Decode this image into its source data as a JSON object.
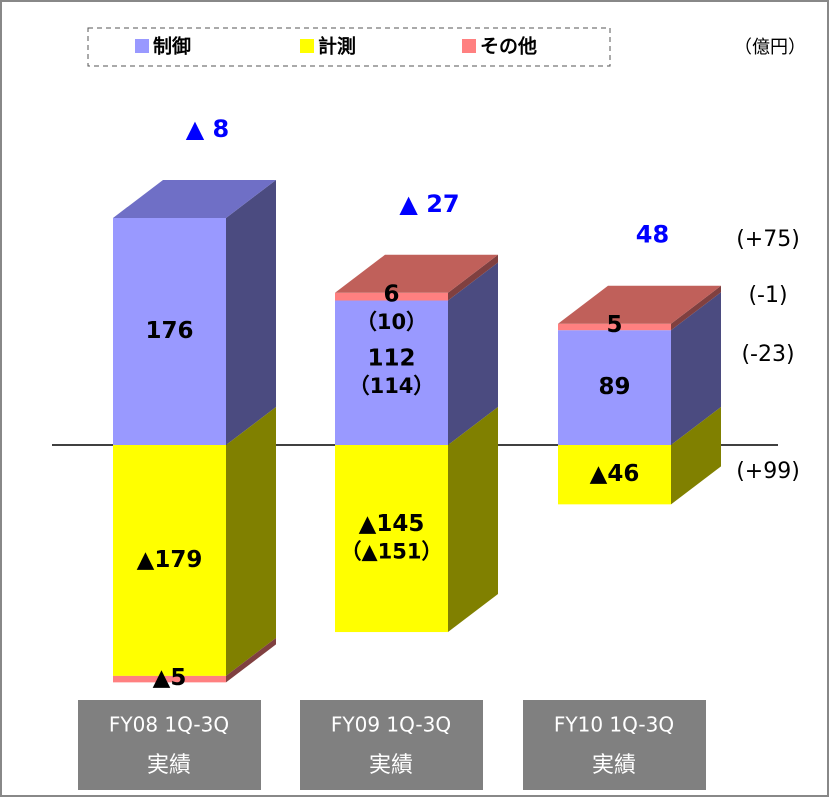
{
  "chart_data": {
    "type": "bar3d",
    "unit": "（億円）",
    "categories": [
      "FY08 1Q-3Q",
      "FY09 1Q-3Q",
      "FY10 1Q-3Q"
    ],
    "category_note": "実績",
    "series": [
      {
        "name": "制御",
        "color": "#9999ff",
        "top": "#6f6fc6",
        "side": "#4b4b80",
        "values": [
          176,
          112,
          89
        ],
        "sub_labels": [
          null,
          "（114）",
          null
        ]
      },
      {
        "name": "計測",
        "color": "#ffff00",
        "top": "#c0c000",
        "side": "#808000",
        "values": [
          -179,
          -145,
          -46
        ],
        "value_labels": [
          "▲179",
          "▲145",
          "▲46"
        ],
        "sub_labels": [
          null,
          "（▲151）",
          null
        ]
      },
      {
        "name": "その他",
        "color": "#ff8080",
        "top": "#c0605a",
        "side": "#804040",
        "values": [
          -5,
          6,
          5
        ],
        "value_labels": [
          "▲5",
          "6",
          "5"
        ],
        "sub_labels": [
          null,
          "（10）",
          null
        ]
      }
    ],
    "totals": [
      -8,
      -27,
      48
    ],
    "total_labels": [
      "▲ 8",
      "▲ 27",
      "48"
    ],
    "changes": [
      "(+75)",
      "(-1)",
      "(-23)",
      "(+99)"
    ]
  }
}
